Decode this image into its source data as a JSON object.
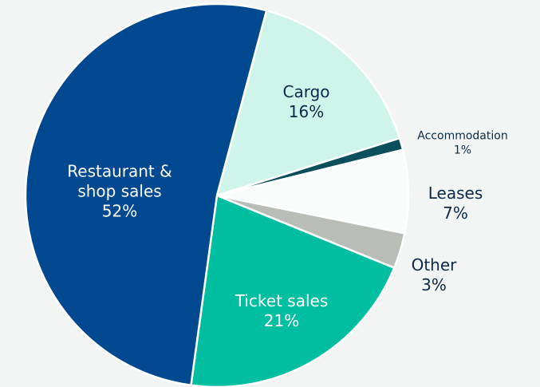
{
  "chart_data": {
    "type": "pie",
    "categories": [
      "Cargo",
      "Accommodation",
      "Leases",
      "Other",
      "Ticket sales",
      "Restaurant & shop sales"
    ],
    "values": [
      16,
      1,
      7,
      3,
      21,
      52
    ],
    "value_labels": [
      "16%",
      "1%",
      "7%",
      "3%",
      "21%",
      "52%"
    ],
    "colors": [
      "#cff5ea",
      "#0b4f5c",
      "#fafbfb",
      "#b9bdb7",
      "#00bfa0",
      "#004990"
    ]
  }
}
